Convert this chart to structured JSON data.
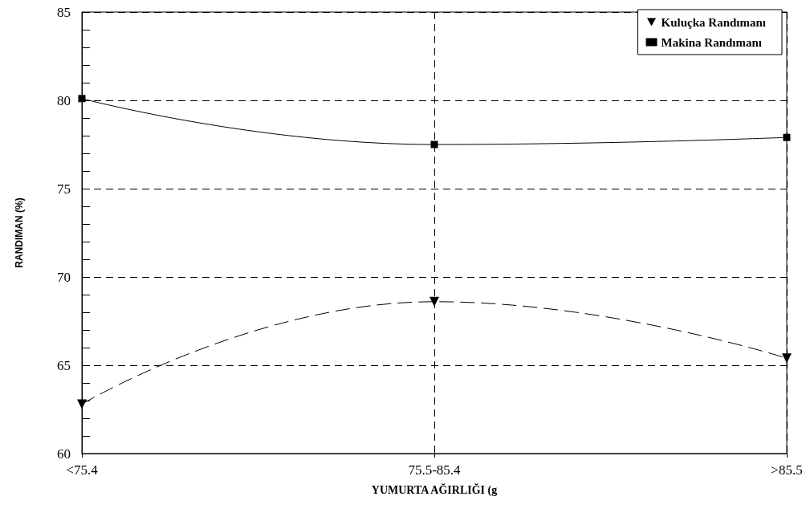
{
  "chart_data": {
    "type": "line",
    "xlabel": "YUMURTA AĞIRLIĞI (g",
    "ylabel": "RANDIMAN (%)",
    "categories": [
      "<75.4",
      "75.5-85.4",
      ">85.5"
    ],
    "series": [
      {
        "name": "Kuluçka Randımanı",
        "color": "#000000",
        "values": [
          62.8,
          68.6,
          65.4
        ],
        "marker": "triangle",
        "line_style": "dashed"
      },
      {
        "name": "Makina Randımanı",
        "color": "#000000",
        "values": [
          80.1,
          77.5,
          77.9
        ],
        "marker": "square",
        "line_style": "solid"
      }
    ],
    "ylim": [
      60,
      85
    ],
    "yticks": [
      60,
      {
        "value": 61,
        "label": null
      },
      {
        "value": 62,
        "label": null
      },
      {
        "value": 63,
        "label": null
      },
      {
        "value": 64,
        "label": null
      },
      65,
      {
        "value": 66,
        "label": null
      },
      {
        "value": 67,
        "label": null
      },
      {
        "value": 68,
        "label": null
      },
      {
        "value": 69,
        "label": null
      },
      70,
      {
        "value": 71,
        "label": null
      },
      {
        "value": 72,
        "label": null
      },
      {
        "value": 73,
        "label": null
      },
      {
        "value": 74,
        "label": null
      },
      75,
      {
        "value": 76,
        "label": null
      },
      {
        "value": 77,
        "label": null
      },
      {
        "value": 78,
        "label": null
      },
      {
        "value": 79,
        "label": null
      },
      80,
      {
        "value": 81,
        "label": null
      },
      {
        "value": 82,
        "label": null
      },
      {
        "value": 83,
        "label": null
      },
      {
        "value": 84,
        "label": null
      },
      85
    ],
    "grid": true,
    "legend": "top right"
  }
}
